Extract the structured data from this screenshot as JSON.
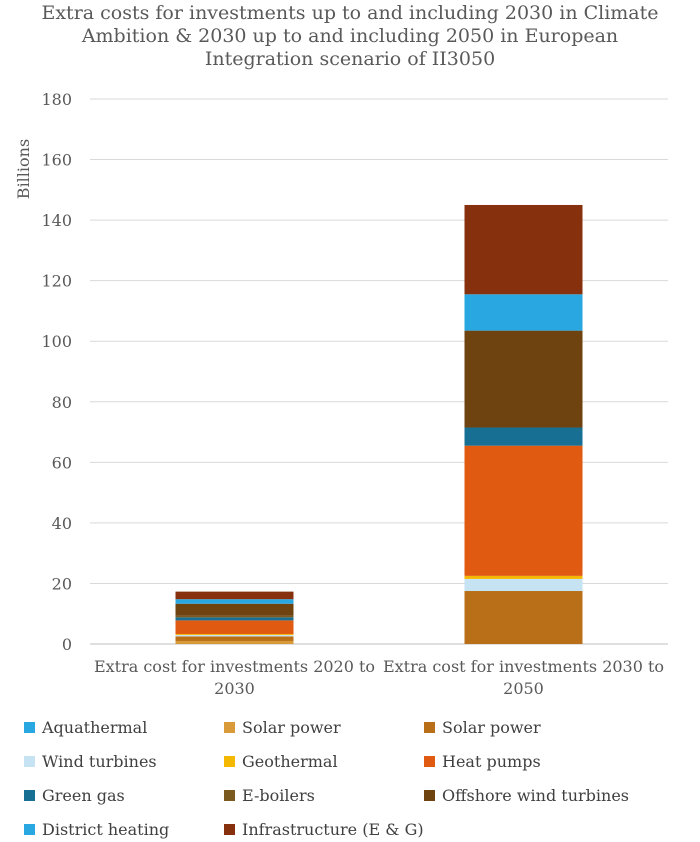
{
  "chart_data": {
    "type": "bar",
    "stacked": true,
    "title_lines": [
      "Extra costs for investments up to and including 2030 in Climate",
      "Ambition & 2030 up to and including 2050 in European",
      "Integration scenario of II3050"
    ],
    "ylabel": "Billions",
    "ylim": [
      0,
      180
    ],
    "yticks": [
      0,
      20,
      40,
      60,
      80,
      100,
      120,
      140,
      160,
      180
    ],
    "grid": true,
    "categories": [
      [
        "Extra cost for investments 2020 to",
        "2030"
      ],
      [
        "Extra cost for investments 2030 to",
        "2050"
      ]
    ],
    "series": [
      {
        "name": "Aquathermal",
        "color": "#29a7e1",
        "values": [
          0,
          0
        ]
      },
      {
        "name": "Solar power",
        "color": "#d99a3a",
        "values": [
          1.0,
          0
        ]
      },
      {
        "name": "Solar power",
        "color": "#b96f17",
        "values": [
          1.5,
          17.5
        ]
      },
      {
        "name": "Wind turbines",
        "color": "#c5e3f3",
        "values": [
          0.5,
          4.0
        ]
      },
      {
        "name": "Geothermal",
        "color": "#f5b800",
        "values": [
          0.3,
          1.0
        ]
      },
      {
        "name": "Heat pumps",
        "color": "#e05a12",
        "values": [
          4.5,
          43.0
        ]
      },
      {
        "name": "Green gas",
        "color": "#176f94",
        "values": [
          1.0,
          6.0
        ]
      },
      {
        "name": "E-boilers",
        "color": "#7a5a1e",
        "values": [
          0.5,
          0
        ]
      },
      {
        "name": "Offshore wind turbines",
        "color": "#6e4310",
        "values": [
          4.0,
          32.0
        ]
      },
      {
        "name": "District heating",
        "color": "#29a7e1",
        "values": [
          1.5,
          12.0
        ]
      },
      {
        "name": "Infrastructure (E & G)",
        "color": "#87300d",
        "values": [
          2.5,
          29.5
        ]
      }
    ]
  }
}
